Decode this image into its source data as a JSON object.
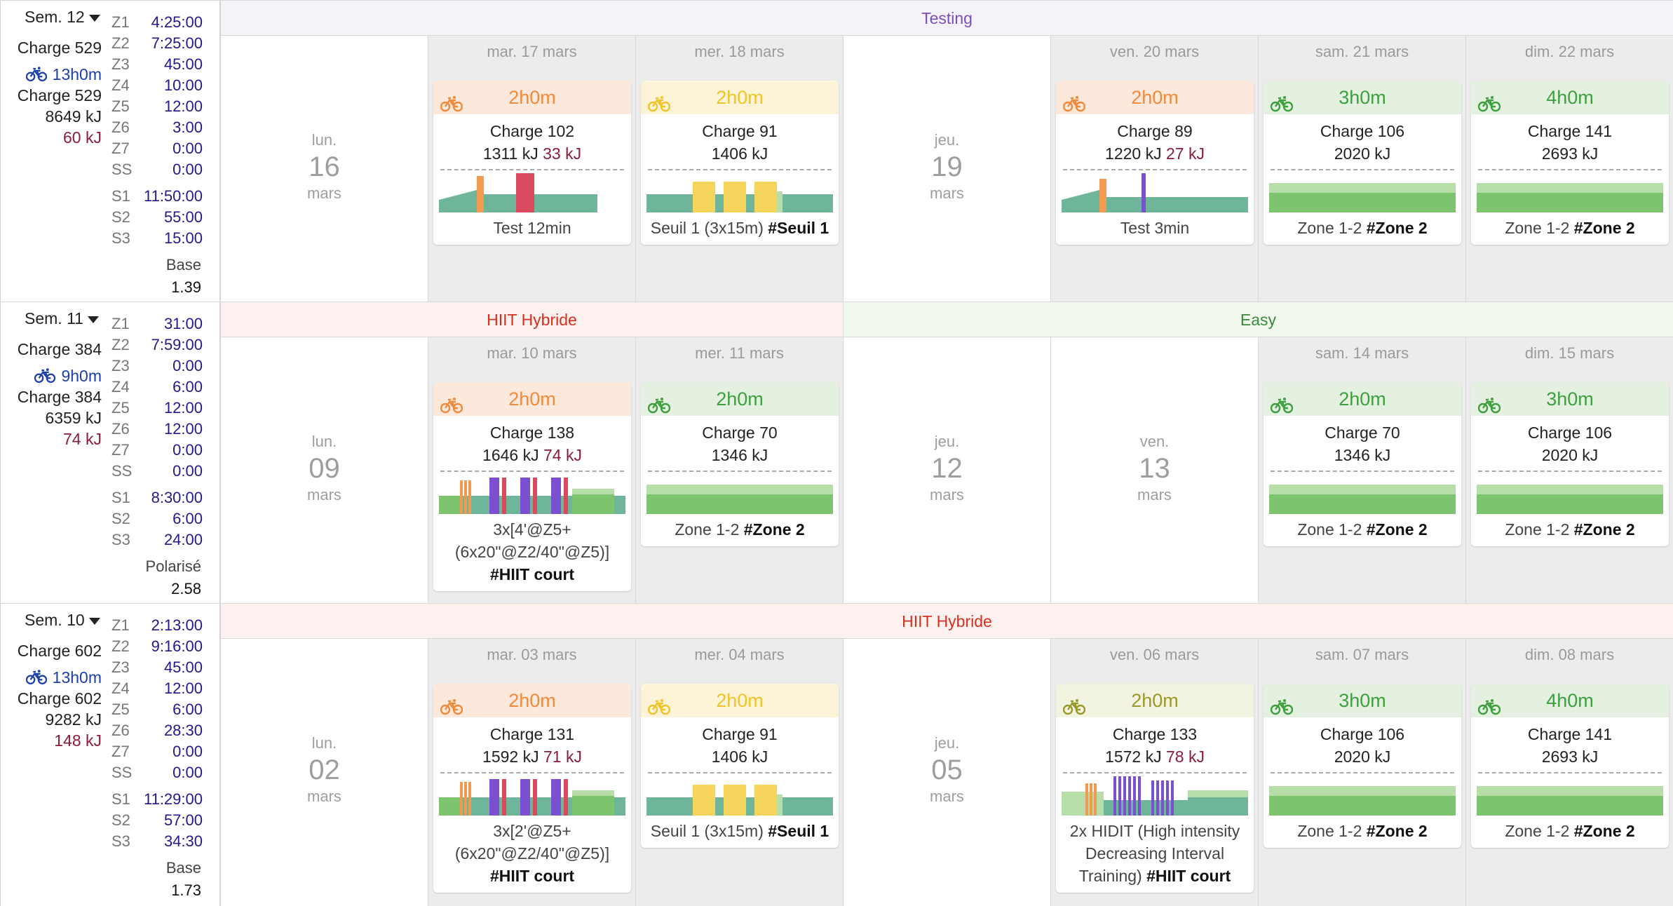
{
  "colors": {
    "bike_blue": "#1d3fa8",
    "red_kj": "#8a1c3a",
    "zone_val": "#231a8a",
    "band_testing": "#7b4fb8",
    "band_hiit": "#d6301f",
    "band_easy": "#3a8a3a",
    "orange": "#f08a3c",
    "yellow": "#efc42a",
    "olive": "#9a9a2a",
    "green": "#3f9f3f"
  },
  "weeks": [
    {
      "sem_label": "Sem. 12",
      "charge": "Charge 529",
      "duration": "13h0m",
      "charge2": "Charge 529",
      "kj": "8649 kJ",
      "kj_red": "60 kJ",
      "zones": [
        [
          "Z1",
          "4:25:00"
        ],
        [
          "Z2",
          "7:25:00"
        ],
        [
          "Z3",
          "45:00"
        ],
        [
          "Z4",
          "10:00"
        ],
        [
          "Z5",
          "12:00"
        ],
        [
          "Z6",
          "3:00"
        ],
        [
          "Z7",
          "0:00"
        ],
        [
          "SS",
          "0:00"
        ]
      ],
      "s_zones": [
        [
          "S1",
          "11:50:00"
        ],
        [
          "S2",
          "55:00"
        ],
        [
          "S3",
          "15:00"
        ]
      ],
      "phase": "Base",
      "phase_value": "1.39",
      "bands": [
        {
          "label": "Testing",
          "tone": "testing",
          "span": 7
        }
      ],
      "days": [
        {
          "rest": true,
          "name": "lun.",
          "num": "16",
          "month": "mars"
        },
        {
          "rest": false,
          "header": "mar. 17 mars",
          "tone": "orange",
          "duration": "2h0m",
          "charge": "Charge 102",
          "kj": "1311 kJ",
          "kj_red": "33 kJ",
          "desc": "Test 12min",
          "tag": "",
          "profile": "test12"
        },
        {
          "rest": false,
          "header": "mer. 18 mars",
          "tone": "yellow",
          "duration": "2h0m",
          "charge": "Charge 91",
          "kj": "1406 kJ",
          "kj_red": "",
          "desc": "Seuil 1 (3x15m)",
          "tag": "#Seuil 1",
          "profile": "seuil"
        },
        {
          "rest": true,
          "name": "jeu.",
          "num": "19",
          "month": "mars"
        },
        {
          "rest": false,
          "header": "ven. 20 mars",
          "tone": "orange",
          "duration": "2h0m",
          "charge": "Charge 89",
          "kj": "1220 kJ",
          "kj_red": "27 kJ",
          "desc": "Test 3min",
          "tag": "",
          "profile": "test3"
        },
        {
          "rest": false,
          "header": "sam. 21 mars",
          "tone": "green",
          "duration": "3h0m",
          "charge": "Charge 106",
          "kj": "2020 kJ",
          "kj_red": "",
          "desc": "Zone 1-2",
          "tag": "#Zone 2",
          "profile": "zone"
        },
        {
          "rest": false,
          "header": "dim. 22 mars",
          "tone": "green",
          "duration": "4h0m",
          "charge": "Charge 141",
          "kj": "2693 kJ",
          "kj_red": "",
          "desc": "Zone 1-2",
          "tag": "#Zone 2",
          "profile": "zone"
        }
      ]
    },
    {
      "sem_label": "Sem. 11",
      "charge": "Charge 384",
      "duration": "9h0m",
      "charge2": "Charge 384",
      "kj": "6359 kJ",
      "kj_red": "74 kJ",
      "zones": [
        [
          "Z1",
          "31:00"
        ],
        [
          "Z2",
          "7:59:00"
        ],
        [
          "Z3",
          "0:00"
        ],
        [
          "Z4",
          "6:00"
        ],
        [
          "Z5",
          "12:00"
        ],
        [
          "Z6",
          "12:00"
        ],
        [
          "Z7",
          "0:00"
        ],
        [
          "SS",
          "0:00"
        ]
      ],
      "s_zones": [
        [
          "S1",
          "8:30:00"
        ],
        [
          "S2",
          "6:00"
        ],
        [
          "S3",
          "24:00"
        ]
      ],
      "phase": "Polarisé",
      "phase_value": "2.58",
      "bands": [
        {
          "label": "HIIT Hybride",
          "tone": "hiit",
          "span": 3
        },
        {
          "label": "Easy",
          "tone": "easy",
          "span": 4
        }
      ],
      "days": [
        {
          "rest": true,
          "name": "lun.",
          "num": "09",
          "month": "mars"
        },
        {
          "rest": false,
          "header": "mar. 10 mars",
          "tone": "orange",
          "duration": "2h0m",
          "charge": "Charge 138",
          "kj": "1646 kJ",
          "kj_red": "74 kJ",
          "desc": "3x[4'@Z5+ (6x20\"@Z2/40\"@Z5)]",
          "tag": "#HIIT court",
          "profile": "hiit"
        },
        {
          "rest": false,
          "header": "mer. 11 mars",
          "tone": "green",
          "duration": "2h0m",
          "charge": "Charge 70",
          "kj": "1346 kJ",
          "kj_red": "",
          "desc": "Zone 1-2",
          "tag": "#Zone 2",
          "profile": "zone"
        },
        {
          "rest": true,
          "name": "jeu.",
          "num": "12",
          "month": "mars"
        },
        {
          "rest": true,
          "name": "ven.",
          "num": "13",
          "month": "mars"
        },
        {
          "rest": false,
          "header": "sam. 14 mars",
          "tone": "green",
          "duration": "2h0m",
          "charge": "Charge 70",
          "kj": "1346 kJ",
          "kj_red": "",
          "desc": "Zone 1-2",
          "tag": "#Zone 2",
          "profile": "zone"
        },
        {
          "rest": false,
          "header": "dim. 15 mars",
          "tone": "green",
          "duration": "3h0m",
          "charge": "Charge 106",
          "kj": "2020 kJ",
          "kj_red": "",
          "desc": "Zone 1-2",
          "tag": "#Zone 2",
          "profile": "zone"
        }
      ]
    },
    {
      "sem_label": "Sem. 10",
      "charge": "Charge 602",
      "duration": "13h0m",
      "charge2": "Charge 602",
      "kj": "9282 kJ",
      "kj_red": "148 kJ",
      "zones": [
        [
          "Z1",
          "2:13:00"
        ],
        [
          "Z2",
          "9:16:00"
        ],
        [
          "Z3",
          "45:00"
        ],
        [
          "Z4",
          "12:00"
        ],
        [
          "Z5",
          "6:00"
        ],
        [
          "Z6",
          "28:30"
        ],
        [
          "Z7",
          "0:00"
        ],
        [
          "SS",
          "0:00"
        ]
      ],
      "s_zones": [
        [
          "S1",
          "11:29:00"
        ],
        [
          "S2",
          "57:00"
        ],
        [
          "S3",
          "34:30"
        ]
      ],
      "phase": "Base",
      "phase_value": "1.73",
      "bands": [
        {
          "label": "HIIT Hybride",
          "tone": "hiit",
          "span": 7
        }
      ],
      "days": [
        {
          "rest": true,
          "name": "lun.",
          "num": "02",
          "month": "mars"
        },
        {
          "rest": false,
          "header": "mar. 03 mars",
          "tone": "orange",
          "duration": "2h0m",
          "charge": "Charge 131",
          "kj": "1592 kJ",
          "kj_red": "71 kJ",
          "desc": "3x[2'@Z5+ (6x20\"@Z2/40\"@Z5)]",
          "tag": "#HIIT court",
          "profile": "hiit"
        },
        {
          "rest": false,
          "header": "mer. 04 mars",
          "tone": "yellow",
          "duration": "2h0m",
          "charge": "Charge 91",
          "kj": "1406 kJ",
          "kj_red": "",
          "desc": "Seuil 1 (3x15m)",
          "tag": "#Seuil 1",
          "profile": "seuil"
        },
        {
          "rest": true,
          "name": "jeu.",
          "num": "05",
          "month": "mars"
        },
        {
          "rest": false,
          "header": "ven. 06 mars",
          "tone": "olive",
          "duration": "2h0m",
          "charge": "Charge 133",
          "kj": "1572 kJ",
          "kj_red": "78 kJ",
          "desc": "2x HIDIT (High intensity Decreasing Interval Training)",
          "tag": "#HIIT court",
          "profile": "hidit"
        },
        {
          "rest": false,
          "header": "sam. 07 mars",
          "tone": "green",
          "duration": "3h0m",
          "charge": "Charge 106",
          "kj": "2020 kJ",
          "kj_red": "",
          "desc": "Zone 1-2",
          "tag": "#Zone 2",
          "profile": "zone"
        },
        {
          "rest": false,
          "header": "dim. 08 mars",
          "tone": "green",
          "duration": "4h0m",
          "charge": "Charge 141",
          "kj": "2693 kJ",
          "kj_red": "",
          "desc": "Zone 1-2",
          "tag": "#Zone 2",
          "profile": "zone"
        }
      ]
    }
  ]
}
